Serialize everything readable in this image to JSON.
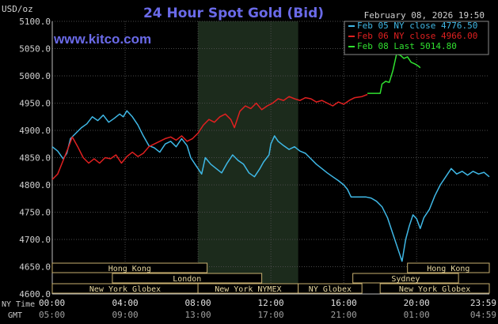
{
  "chart_data": {
    "type": "line",
    "title": "24 Hour Spot Gold (Bid)",
    "ylabel": "USD/oz",
    "brand": "www.kitco.com",
    "date_stamp": "February 08, 2026 19:50",
    "ylim": [
      4600,
      5100
    ],
    "yticks": [
      "5100.0",
      "5050.0",
      "5000.0",
      "4950.0",
      "4900.0",
      "4850.0",
      "4800.0",
      "4750.0",
      "4700.0",
      "4650.0",
      "4600.0"
    ],
    "x_axis": {
      "ny_label": "NY Time",
      "gmt_label": "GMT",
      "ny_ticks": [
        "00:00",
        "04:00",
        "08:00",
        "12:00",
        "16:00",
        "20:00",
        "23:59"
      ],
      "gmt_ticks": [
        "05:00",
        "09:00",
        "13:00",
        "17:00",
        "21:00",
        "01:00",
        "04:59"
      ]
    },
    "legend": [
      {
        "label": "Feb 05 NY close 4776.50",
        "color": "#3fb8e6"
      },
      {
        "label": "Feb 06 NY close 4966.00",
        "color": "#e02020"
      },
      {
        "label": "Feb 08 Last 5014.80",
        "color": "#30e030"
      }
    ],
    "sessions": [
      {
        "label": "Hong Kong",
        "start": 0,
        "end": 8.5,
        "row": 0
      },
      {
        "label": "Hong Kong",
        "start": 19.5,
        "end": 23.99,
        "row": 0
      },
      {
        "label": "London",
        "start": 3.3,
        "end": 11.5,
        "row": 1
      },
      {
        "label": "Sydney",
        "start": 16.5,
        "end": 22.3,
        "row": 1
      },
      {
        "label": "New York Globex",
        "start": 0,
        "end": 8.0,
        "row": 2
      },
      {
        "label": "New York NYMEX",
        "start": 8.0,
        "end": 13.5,
        "row": 2
      },
      {
        "label": "NY Globex",
        "start": 13.5,
        "end": 17.0,
        "row": 2
      },
      {
        "label": "New York Globex",
        "start": 18.0,
        "end": 23.99,
        "row": 2
      }
    ],
    "highlight_range": [
      8.0,
      13.5
    ],
    "series": [
      {
        "name": "Feb 05",
        "color": "#3fb8e6",
        "points": [
          [
            0.0,
            4870
          ],
          [
            0.3,
            4862
          ],
          [
            0.6,
            4848
          ],
          [
            0.8,
            4858
          ],
          [
            1.0,
            4885
          ],
          [
            1.3,
            4895
          ],
          [
            1.6,
            4905
          ],
          [
            1.9,
            4912
          ],
          [
            2.2,
            4925
          ],
          [
            2.5,
            4918
          ],
          [
            2.8,
            4928
          ],
          [
            3.1,
            4915
          ],
          [
            3.4,
            4922
          ],
          [
            3.7,
            4930
          ],
          [
            3.9,
            4925
          ],
          [
            4.1,
            4936
          ],
          [
            4.4,
            4925
          ],
          [
            4.7,
            4910
          ],
          [
            5.0,
            4890
          ],
          [
            5.3,
            4872
          ],
          [
            5.6,
            4868
          ],
          [
            5.9,
            4860
          ],
          [
            6.2,
            4875
          ],
          [
            6.5,
            4880
          ],
          [
            6.8,
            4870
          ],
          [
            7.1,
            4885
          ],
          [
            7.4,
            4872
          ],
          [
            7.6,
            4850
          ],
          [
            7.9,
            4835
          ],
          [
            8.2,
            4820
          ],
          [
            8.4,
            4850
          ],
          [
            8.7,
            4838
          ],
          [
            9.0,
            4830
          ],
          [
            9.3,
            4822
          ],
          [
            9.6,
            4840
          ],
          [
            9.9,
            4855
          ],
          [
            10.2,
            4845
          ],
          [
            10.5,
            4838
          ],
          [
            10.8,
            4822
          ],
          [
            11.1,
            4815
          ],
          [
            11.4,
            4830
          ],
          [
            11.6,
            4842
          ],
          [
            11.9,
            4855
          ],
          [
            12.0,
            4875
          ],
          [
            12.2,
            4890
          ],
          [
            12.4,
            4880
          ],
          [
            12.7,
            4872
          ],
          [
            13.0,
            4865
          ],
          [
            13.3,
            4870
          ],
          [
            13.6,
            4862
          ],
          [
            13.9,
            4858
          ],
          [
            14.2,
            4848
          ],
          [
            14.5,
            4838
          ],
          [
            14.8,
            4830
          ],
          [
            15.1,
            4822
          ],
          [
            15.4,
            4815
          ],
          [
            15.7,
            4808
          ],
          [
            16.0,
            4800
          ],
          [
            16.2,
            4792
          ],
          [
            16.4,
            4778
          ],
          [
            16.8,
            4778
          ],
          [
            17.2,
            4778
          ],
          [
            17.5,
            4776
          ],
          [
            17.8,
            4770
          ],
          [
            18.1,
            4760
          ],
          [
            18.4,
            4740
          ],
          [
            18.7,
            4710
          ],
          [
            19.0,
            4680
          ],
          [
            19.2,
            4660
          ],
          [
            19.4,
            4700
          ],
          [
            19.6,
            4725
          ],
          [
            19.8,
            4745
          ],
          [
            20.0,
            4738
          ],
          [
            20.2,
            4720
          ],
          [
            20.4,
            4740
          ],
          [
            20.7,
            4755
          ],
          [
            21.0,
            4780
          ],
          [
            21.3,
            4800
          ],
          [
            21.6,
            4815
          ],
          [
            21.9,
            4830
          ],
          [
            22.2,
            4820
          ],
          [
            22.5,
            4825
          ],
          [
            22.8,
            4818
          ],
          [
            23.1,
            4825
          ],
          [
            23.4,
            4820
          ],
          [
            23.7,
            4823
          ],
          [
            23.99,
            4815
          ]
        ]
      },
      {
        "name": "Feb 06",
        "color": "#e02020",
        "points": [
          [
            0.0,
            4810
          ],
          [
            0.3,
            4820
          ],
          [
            0.6,
            4845
          ],
          [
            0.9,
            4870
          ],
          [
            1.1,
            4888
          ],
          [
            1.4,
            4870
          ],
          [
            1.7,
            4850
          ],
          [
            2.0,
            4840
          ],
          [
            2.3,
            4848
          ],
          [
            2.6,
            4840
          ],
          [
            2.9,
            4850
          ],
          [
            3.2,
            4848
          ],
          [
            3.5,
            4855
          ],
          [
            3.8,
            4840
          ],
          [
            4.1,
            4852
          ],
          [
            4.4,
            4860
          ],
          [
            4.7,
            4852
          ],
          [
            5.0,
            4858
          ],
          [
            5.3,
            4870
          ],
          [
            5.6,
            4875
          ],
          [
            5.9,
            4880
          ],
          [
            6.2,
            4885
          ],
          [
            6.5,
            4888
          ],
          [
            6.8,
            4882
          ],
          [
            7.1,
            4890
          ],
          [
            7.4,
            4880
          ],
          [
            7.7,
            4885
          ],
          [
            8.0,
            4895
          ],
          [
            8.3,
            4910
          ],
          [
            8.6,
            4920
          ],
          [
            8.9,
            4915
          ],
          [
            9.2,
            4925
          ],
          [
            9.5,
            4930
          ],
          [
            9.8,
            4920
          ],
          [
            10.0,
            4905
          ],
          [
            10.3,
            4935
          ],
          [
            10.6,
            4945
          ],
          [
            10.9,
            4940
          ],
          [
            11.2,
            4950
          ],
          [
            11.5,
            4938
          ],
          [
            11.8,
            4945
          ],
          [
            12.1,
            4950
          ],
          [
            12.4,
            4958
          ],
          [
            12.7,
            4955
          ],
          [
            13.0,
            4962
          ],
          [
            13.3,
            4958
          ],
          [
            13.6,
            4955
          ],
          [
            13.9,
            4960
          ],
          [
            14.2,
            4958
          ],
          [
            14.5,
            4952
          ],
          [
            14.8,
            4955
          ],
          [
            15.1,
            4950
          ],
          [
            15.4,
            4945
          ],
          [
            15.7,
            4952
          ],
          [
            16.0,
            4948
          ],
          [
            16.3,
            4955
          ],
          [
            16.6,
            4960
          ],
          [
            17.0,
            4962
          ],
          [
            17.3,
            4966
          ]
        ]
      },
      {
        "name": "Feb 08",
        "color": "#30e030",
        "points": [
          [
            17.3,
            4968
          ],
          [
            17.6,
            4968
          ],
          [
            18.0,
            4968
          ],
          [
            18.1,
            4985
          ],
          [
            18.3,
            4990
          ],
          [
            18.5,
            4988
          ],
          [
            18.7,
            5010
          ],
          [
            18.9,
            5040
          ],
          [
            19.1,
            5038
          ],
          [
            19.3,
            5032
          ],
          [
            19.5,
            5035
          ],
          [
            19.7,
            5025
          ],
          [
            19.9,
            5022
          ],
          [
            20.1,
            5018
          ],
          [
            20.2,
            5014.8
          ]
        ]
      }
    ]
  }
}
